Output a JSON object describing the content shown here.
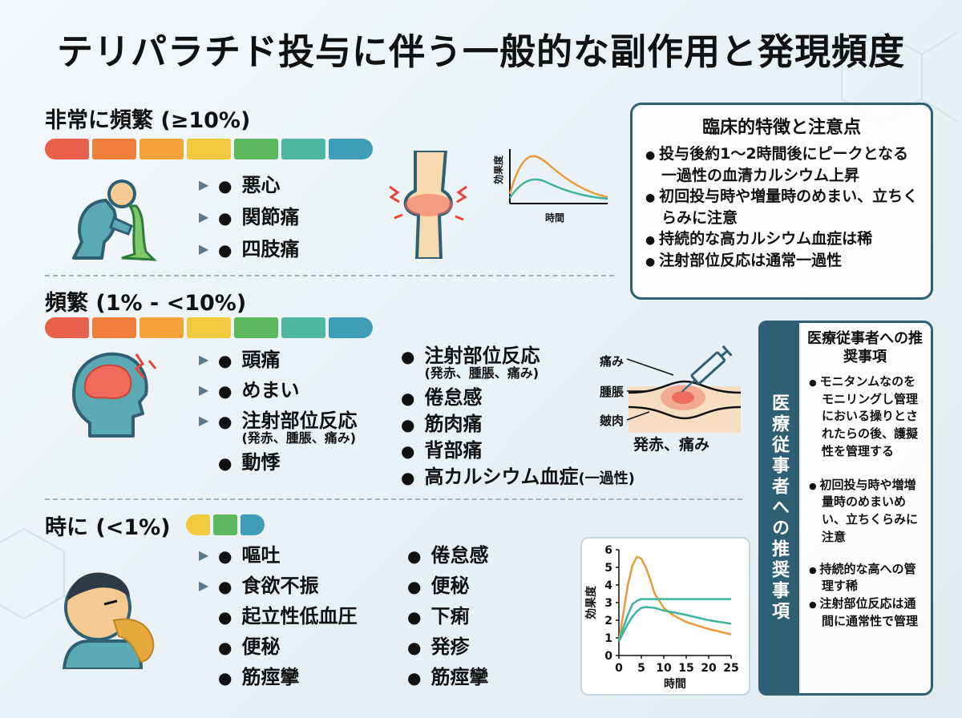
{
  "title": "テリパラチド投与に伴う一般的な副作用と発現頻度",
  "sections": {
    "very_common": {
      "heading": "非常に頻繁 (≥10%)",
      "items": [
        "悪心",
        "関節痛",
        "四肢痛"
      ]
    },
    "common": {
      "heading": "頻繁 (1% - <10%)",
      "items_left": [
        {
          "label": "頭痛",
          "sub": ""
        },
        {
          "label": "めまい",
          "sub": ""
        },
        {
          "label": "注射部位反応",
          "sub": "(発赤、腫脹、痛み)"
        },
        {
          "label": "動悸",
          "sub": ""
        }
      ],
      "items_right": [
        {
          "label": "注射部位反応",
          "sub": "(発赤、腫脹、痛み)"
        },
        {
          "label": "倦怠感",
          "sub": ""
        },
        {
          "label": "筋肉痛",
          "sub": ""
        },
        {
          "label": "背部痛",
          "sub": ""
        },
        {
          "label": "高カルシウム血症",
          "small": "(一過性)"
        }
      ],
      "injection_labels": {
        "pain": "痛み",
        "swelling": "腫脹",
        "skin": "皴肉",
        "caption": "発赤、痛み"
      }
    },
    "uncommon": {
      "heading": "時に (<1%)",
      "items_left": [
        "嘔吐",
        "食欲不振",
        "起立性低血圧",
        "便秘",
        "筋痙攣"
      ],
      "items_right": [
        "倦怠感",
        "便秘",
        "下痢",
        "発疹",
        "筋痙攣"
      ]
    }
  },
  "frequency_colors": [
    "#e8604c",
    "#ef7f3a",
    "#f4a23a",
    "#f1c93e",
    "#5cb85c",
    "#4fb7a0",
    "#3f9db8"
  ],
  "mini_chart": {
    "ylabel": "効果度",
    "xlabel": "時間"
  },
  "clinical_card": {
    "title": "臨床的特徴と注意点",
    "items": [
      "投与後約1〜2時間後にピークとなる一過性の血清カルシウム上昇",
      "初回投与時や増量時のめまい、立ちくらみに注意",
      "持続的な高カルシウム血症は稀",
      "注射部位反応は通常一過性"
    ]
  },
  "recommend_card": {
    "side_label": "医療従事者への推奨事項",
    "title": "医療従事者への推奨事項",
    "items": [
      "モニタンムなのをモニリングし管理においる操りとされたらの後、護擬性を管理する",
      "初回投与時や増増量時のめまいめい、立ちくらみに注意",
      "持続的な高への管理す稀",
      "注射部位反応は通間に通常性で管理"
    ]
  },
  "chart_data": {
    "type": "line",
    "xlabel": "時間",
    "ylabel": "効果度",
    "xlim": [
      0,
      25
    ],
    "ylim": [
      0,
      6
    ],
    "xticks": [
      0,
      5,
      10,
      15,
      20,
      25
    ],
    "yticks": [
      0,
      1,
      2,
      3,
      4,
      5,
      6
    ],
    "grid": false,
    "series": [
      {
        "color": "#e89a3c",
        "x": [
          0,
          1,
          2,
          3,
          4,
          5,
          6,
          7,
          8,
          10,
          12,
          15,
          20,
          25
        ],
        "y": [
          0.8,
          2.4,
          4.0,
          5.1,
          5.6,
          5.5,
          5.0,
          4.3,
          3.5,
          2.7,
          2.3,
          1.9,
          1.5,
          1.2
        ]
      },
      {
        "color": "#3fb3a0",
        "x": [
          0,
          1,
          2,
          3,
          4,
          5,
          6,
          8,
          10,
          15,
          20,
          25
        ],
        "y": [
          0.8,
          1.6,
          2.3,
          2.9,
          3.1,
          3.2,
          3.2,
          3.2,
          3.2,
          3.2,
          3.2,
          3.2
        ]
      },
      {
        "color": "#3fb3a0",
        "x": [
          0,
          1,
          2,
          3,
          4,
          5,
          6,
          8,
          10,
          15,
          20,
          25
        ],
        "y": [
          0.8,
          1.3,
          1.8,
          2.2,
          2.5,
          2.7,
          2.75,
          2.7,
          2.55,
          2.3,
          2.0,
          1.8
        ]
      }
    ]
  }
}
